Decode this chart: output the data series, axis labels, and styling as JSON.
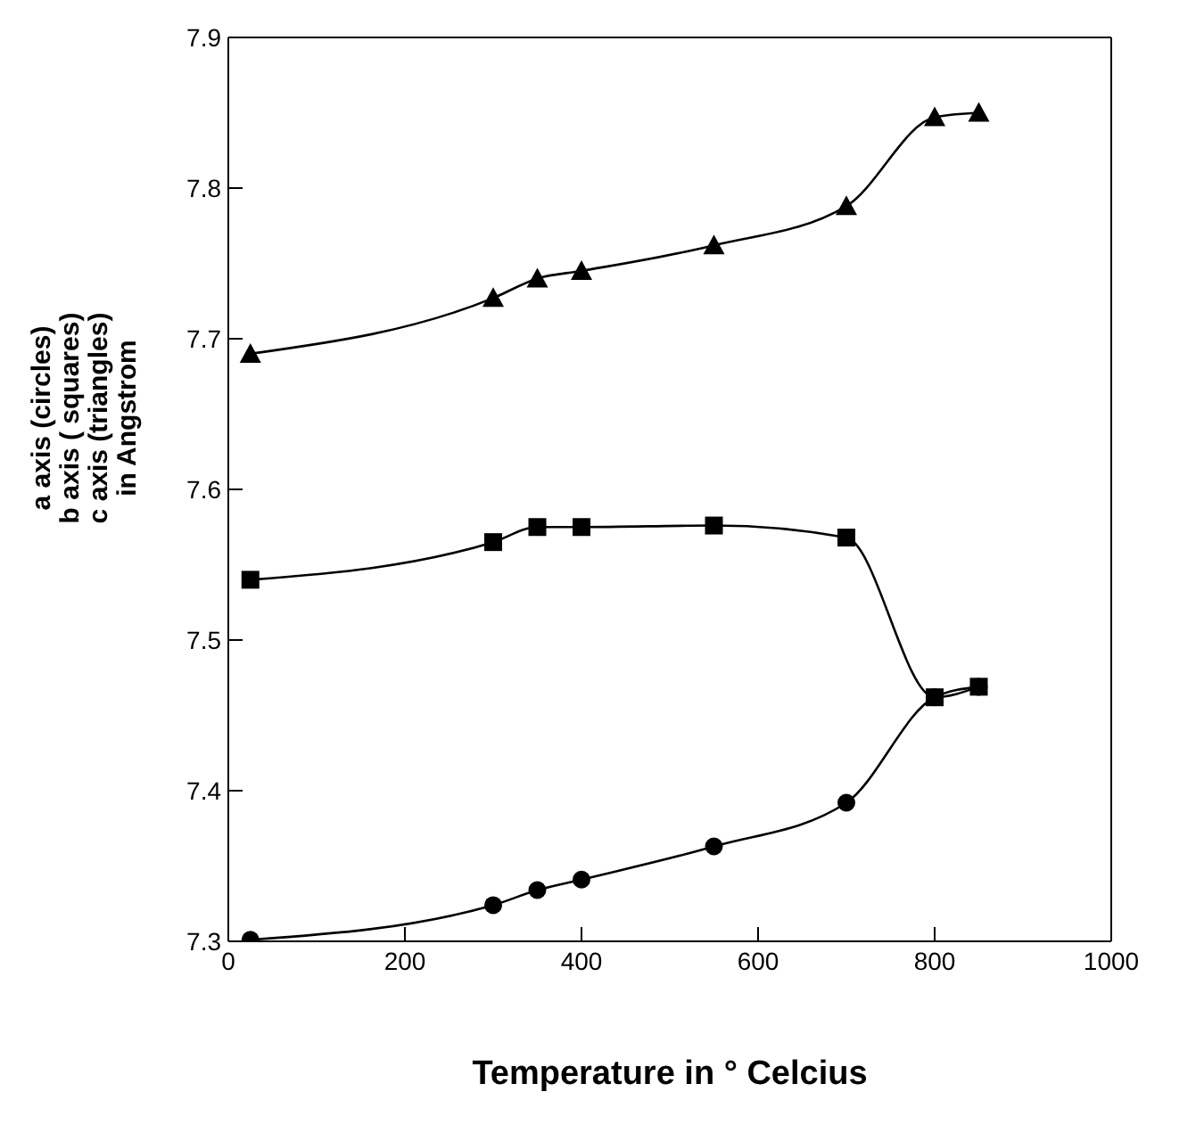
{
  "chart_data": {
    "type": "line",
    "xlabel": "Temperature in ° Celcius",
    "ylabel": "a axis  (circles)\nb axis  ( squares)\nc axis  (triangles)\nin Angstrom",
    "x": [
      25,
      300,
      350,
      400,
      550,
      700,
      800,
      850
    ],
    "series": [
      {
        "color": "#000000",
        "marker": "circle",
        "values": [
          7.301,
          7.324,
          7.334,
          7.341,
          7.363,
          7.392,
          7.462,
          7.469
        ]
      },
      {
        "color": "#000000",
        "marker": "square",
        "values": [
          7.54,
          7.565,
          7.575,
          7.575,
          7.576,
          7.568,
          7.462,
          7.469
        ]
      },
      {
        "color": "#000000",
        "marker": "triangle",
        "values": [
          7.69,
          7.727,
          7.74,
          7.745,
          7.762,
          7.788,
          7.847,
          7.85
        ]
      }
    ],
    "xlim": [
      0,
      1000
    ],
    "xticks": [
      0,
      200,
      400,
      600,
      800,
      1000
    ],
    "ylim": [
      7.3,
      7.9
    ],
    "yticks": [
      7.3,
      7.4,
      7.5,
      7.6,
      7.7,
      7.8,
      7.9
    ],
    "grid": false,
    "legend": false,
    "line_style": "solid"
  }
}
